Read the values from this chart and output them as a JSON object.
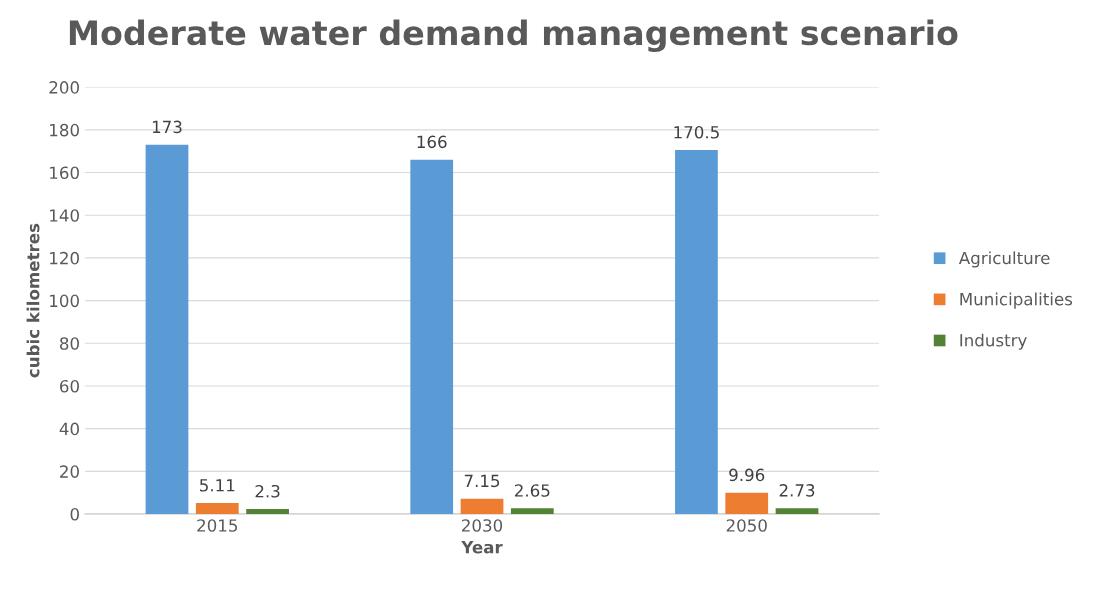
{
  "chart_data": {
    "type": "bar",
    "title": "Moderate water demand management scenario",
    "xlabel": "Year",
    "ylabel": "cubic kilometres",
    "categories": [
      "2015",
      "2030",
      "2050"
    ],
    "series": [
      {
        "name": "Agriculture",
        "color": "#5b9bd5",
        "values": [
          173,
          166,
          170.5
        ]
      },
      {
        "name": "Municipalities",
        "color": "#ed7d31",
        "values": [
          5.11,
          7.15,
          9.96
        ]
      },
      {
        "name": "Industry",
        "color": "#548235",
        "values": [
          2.3,
          2.65,
          2.73
        ]
      }
    ],
    "ylim": [
      0,
      200
    ],
    "yticks": [
      0,
      20,
      40,
      60,
      80,
      100,
      120,
      140,
      160,
      180,
      200
    ],
    "grid": "y",
    "legend": "right",
    "data_labels": true
  }
}
